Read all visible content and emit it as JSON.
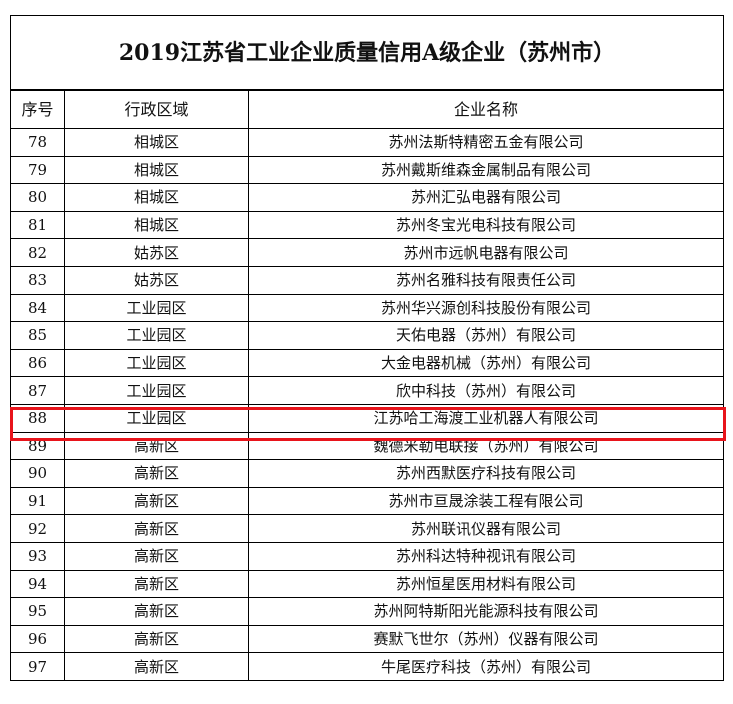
{
  "title": "2019江苏省工业企业质量信用A级企业（苏州市）",
  "headers": {
    "no": "序号",
    "district": "行政区域",
    "name": "企业名称"
  },
  "highlight_color": "#e8141b",
  "highlighted_row": "88",
  "rows": [
    {
      "no": "78",
      "district": "相城区",
      "name": "苏州法斯特精密五金有限公司"
    },
    {
      "no": "79",
      "district": "相城区",
      "name": "苏州戴斯维森金属制品有限公司"
    },
    {
      "no": "80",
      "district": "相城区",
      "name": "苏州汇弘电器有限公司"
    },
    {
      "no": "81",
      "district": "相城区",
      "name": "苏州冬宝光电科技有限公司"
    },
    {
      "no": "82",
      "district": "姑苏区",
      "name": "苏州市远帆电器有限公司"
    },
    {
      "no": "83",
      "district": "姑苏区",
      "name": "苏州名雅科技有限责任公司"
    },
    {
      "no": "84",
      "district": "工业园区",
      "name": "苏州华兴源创科技股份有限公司"
    },
    {
      "no": "85",
      "district": "工业园区",
      "name": "天佑电器（苏州）有限公司"
    },
    {
      "no": "86",
      "district": "工业园区",
      "name": "大金电器机械（苏州）有限公司"
    },
    {
      "no": "87",
      "district": "工业园区",
      "name": "欣中科技（苏州）有限公司"
    },
    {
      "no": "88",
      "district": "工业园区",
      "name": "江苏哈工海渡工业机器人有限公司"
    },
    {
      "no": "89",
      "district": "高新区",
      "name": "魏德米勒电联接（苏州）有限公司"
    },
    {
      "no": "90",
      "district": "高新区",
      "name": "苏州西默医疗科技有限公司"
    },
    {
      "no": "91",
      "district": "高新区",
      "name": "苏州市亘晟涂装工程有限公司"
    },
    {
      "no": "92",
      "district": "高新区",
      "name": "苏州联讯仪器有限公司"
    },
    {
      "no": "93",
      "district": "高新区",
      "name": "苏州科达特种视讯有限公司"
    },
    {
      "no": "94",
      "district": "高新区",
      "name": "苏州恒星医用材料有限公司"
    },
    {
      "no": "95",
      "district": "高新区",
      "name": "苏州阿特斯阳光能源科技有限公司"
    },
    {
      "no": "96",
      "district": "高新区",
      "name": "赛默飞世尔（苏州）仪器有限公司"
    },
    {
      "no": "97",
      "district": "高新区",
      "name": "牛尾医疗科技（苏州）有限公司"
    }
  ]
}
